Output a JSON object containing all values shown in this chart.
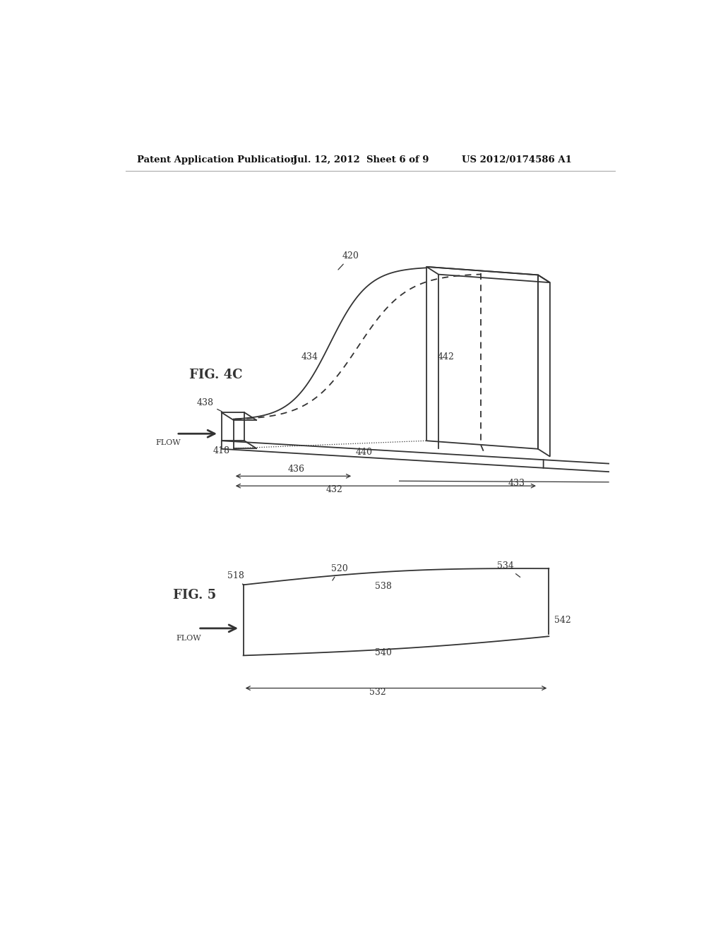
{
  "bg_color": "#ffffff",
  "line_color": "#333333",
  "header_text_left": "Patent Application Publication",
  "header_text_mid": "Jul. 12, 2012  Sheet 6 of 9",
  "header_text_right": "US 2012/0174586 A1",
  "fig4c_label": "FIG. 4C",
  "fig5_label": "FIG. 5"
}
